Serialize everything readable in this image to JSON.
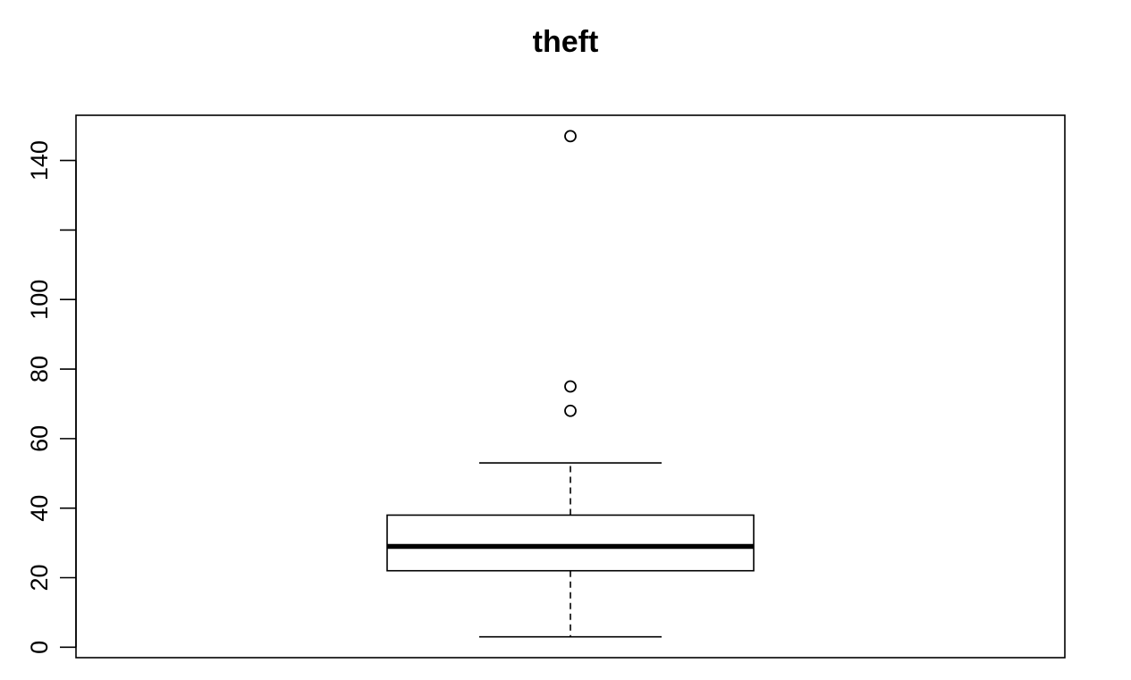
{
  "chart_data": {
    "type": "box",
    "title": "theft",
    "xlabel": "",
    "ylabel": "",
    "ylim": [
      -3,
      153
    ],
    "yticks": [
      0,
      20,
      40,
      60,
      80,
      100,
      120,
      140
    ],
    "ytick_labels": [
      "0",
      "20",
      "40",
      "60",
      "80",
      "100",
      "",
      "140"
    ],
    "box": {
      "whisker_low": 3,
      "q1": 22,
      "median": 29,
      "q3": 38,
      "whisker_high": 53
    },
    "outliers": [
      68,
      75,
      147
    ],
    "grid": false,
    "legend": "none"
  }
}
